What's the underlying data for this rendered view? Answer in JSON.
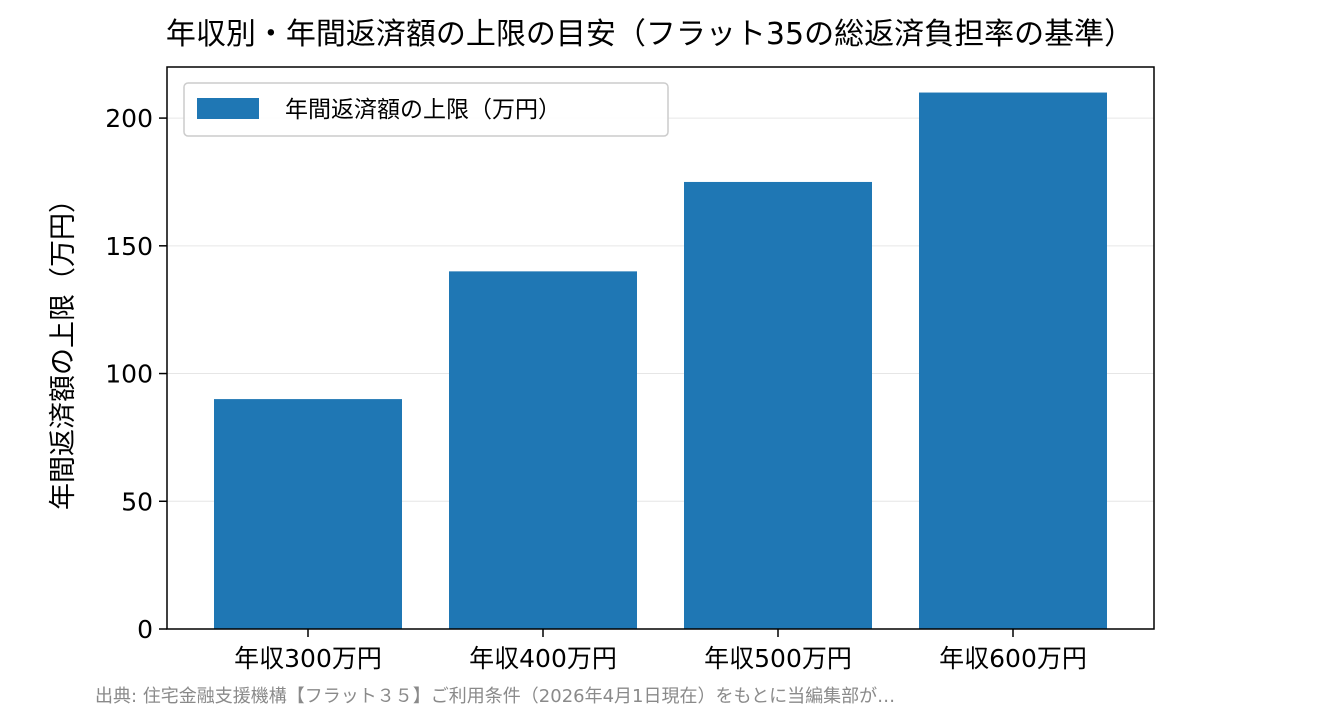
{
  "chart_data": {
    "type": "bar",
    "title": "年収別・年間返済額の上限の目安（フラット35の総返済負担率の基準）",
    "categories": [
      "年収300万円",
      "年収400万円",
      "年収500万円",
      "年収600万円"
    ],
    "series": [
      {
        "name": "年間返済額の上限（万円）",
        "values": [
          90,
          140,
          175,
          210
        ],
        "color": "#1f77b4"
      }
    ],
    "xlabel": "",
    "ylabel": "年間返済額の上限（万円）",
    "ylim": [
      0,
      220
    ],
    "yticks": [
      0,
      50,
      100,
      150,
      200
    ],
    "grid": "y",
    "legend_position": "top-left"
  },
  "source_note": "出典: 住宅金融支援機構【フラット３５】ご利用条件（2026年4月1日現在）をもとに当編集部が…",
  "colors": {
    "bar": "#1f77b4",
    "grid": "#e6e6e6",
    "axes": "#000000",
    "legend_border": "#cccccc",
    "source_text": "#8a8a8a"
  }
}
